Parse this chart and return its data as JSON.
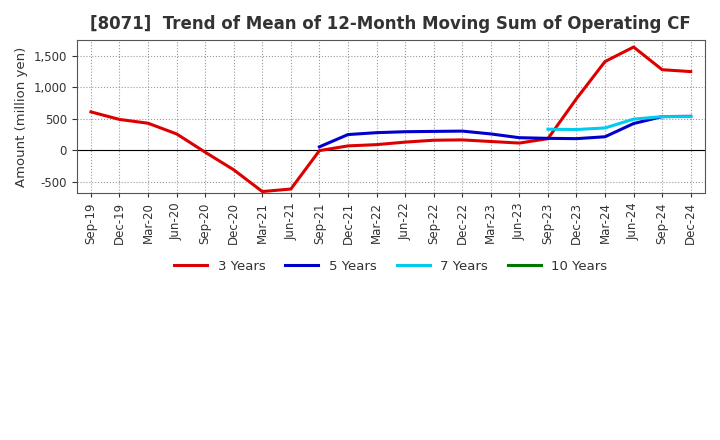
{
  "title": "[8071]  Trend of Mean of 12-Month Moving Sum of Operating CF",
  "ylabel": "Amount (million yen)",
  "ylim": [
    -680,
    1750
  ],
  "yticks": [
    -500,
    0,
    500,
    1000,
    1500
  ],
  "background_color": "#ffffff",
  "plot_bg_color": "#ffffff",
  "grid_color": "#999999",
  "x_labels": [
    "Sep-19",
    "Dec-19",
    "Mar-20",
    "Jun-20",
    "Sep-20",
    "Dec-20",
    "Mar-21",
    "Jun-21",
    "Sep-21",
    "Dec-21",
    "Mar-22",
    "Jun-22",
    "Sep-22",
    "Dec-22",
    "Mar-23",
    "Jun-23",
    "Sep-23",
    "Dec-23",
    "Mar-24",
    "Jun-24",
    "Sep-24",
    "Dec-24"
  ],
  "series": {
    "3yr": {
      "color": "#dd0000",
      "linewidth": 2.2,
      "x_indices": [
        0,
        1,
        2,
        3,
        4,
        5,
        6,
        7,
        8,
        9,
        10,
        11,
        12,
        13,
        14,
        15,
        16,
        17,
        18,
        19,
        20,
        21
      ],
      "y": [
        610,
        490,
        430,
        260,
        -30,
        -310,
        -655,
        -615,
        -5,
        70,
        90,
        130,
        160,
        165,
        140,
        115,
        185,
        820,
        1410,
        1640,
        1280,
        1250
      ]
    },
    "5yr": {
      "color": "#0000cc",
      "linewidth": 2.2,
      "x_indices": [
        8,
        9,
        10,
        11,
        12,
        13,
        14,
        15,
        16,
        17,
        18,
        19,
        20,
        21
      ],
      "y": [
        55,
        250,
        280,
        295,
        300,
        305,
        260,
        200,
        190,
        185,
        215,
        425,
        535,
        540
      ]
    },
    "7yr": {
      "color": "#00ccee",
      "linewidth": 2.2,
      "x_indices": [
        16,
        17,
        18,
        19,
        20,
        21
      ],
      "y": [
        335,
        330,
        355,
        495,
        535,
        535
      ]
    },
    "10yr": {
      "color": "#007700",
      "linewidth": 2.2,
      "x_indices": [],
      "y": []
    }
  },
  "legend": [
    {
      "label": "3 Years",
      "color": "#dd0000"
    },
    {
      "label": "5 Years",
      "color": "#0000cc"
    },
    {
      "label": "7 Years",
      "color": "#00ccee"
    },
    {
      "label": "10 Years",
      "color": "#007700"
    }
  ],
  "title_fontsize": 12,
  "label_fontsize": 9.5,
  "tick_fontsize": 8.5,
  "title_color": "#333333"
}
